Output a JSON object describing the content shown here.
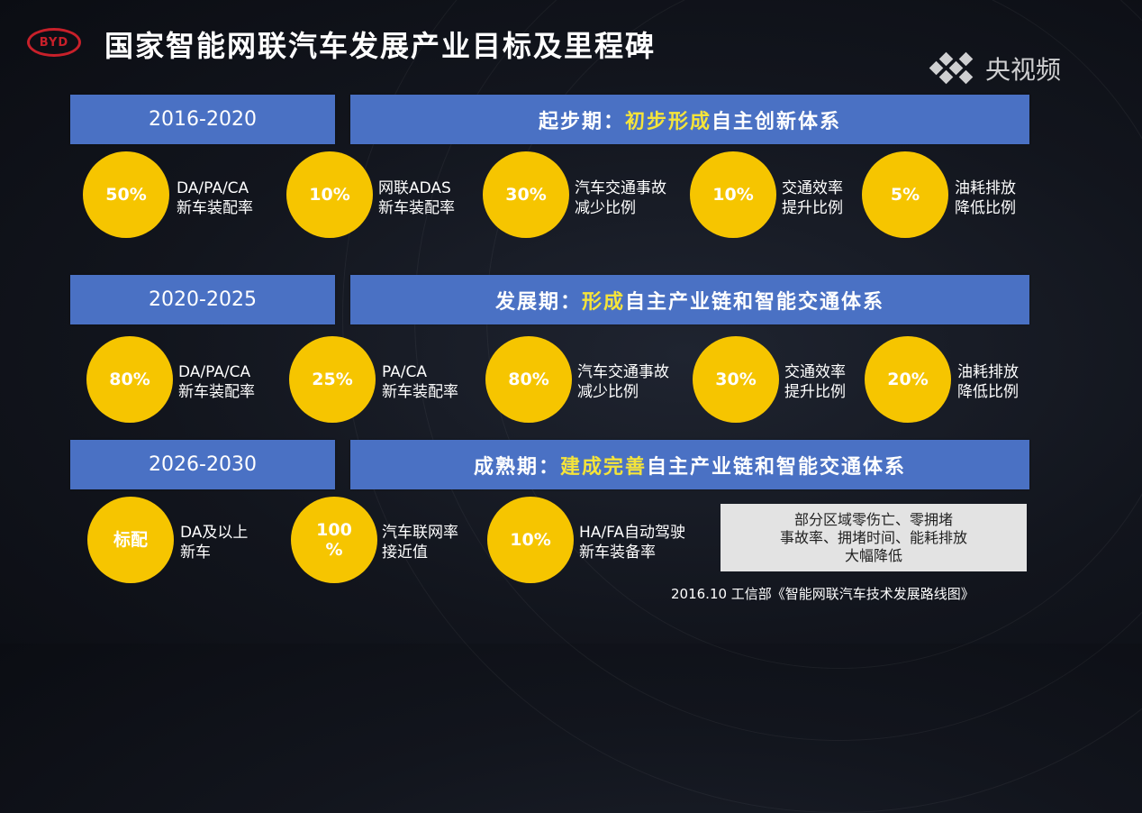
{
  "logo": "BYD",
  "title": "国家智能网联汽车发展产业目标及里程碑",
  "watermark": "央视频",
  "colors": {
    "bar": "#4a71c4",
    "circle": "#f6c500",
    "highlight": "#f5e43a",
    "logo": "#c8202a"
  },
  "stages": [
    {
      "years": "2016-2020",
      "phase_prefix": "起步期：",
      "phase_highlight": "初步形成",
      "phase_suffix": "自主创新体系",
      "metrics": [
        {
          "value": "50%",
          "line1": "DA/PA/CA",
          "line2": "新车装配率"
        },
        {
          "value": "10%",
          "line1": "网联ADAS",
          "line2": "新车装配率"
        },
        {
          "value": "30%",
          "line1": "汽车交通事故",
          "line2": "减少比例"
        },
        {
          "value": "10%",
          "line1": "交通效率",
          "line2": "提升比例"
        },
        {
          "value": "5%",
          "line1": "油耗排放",
          "line2": "降低比例"
        }
      ]
    },
    {
      "years": "2020-2025",
      "phase_prefix": "发展期：",
      "phase_highlight": "形成",
      "phase_suffix": "自主产业链和智能交通体系",
      "metrics": [
        {
          "value": "80%",
          "line1": "DA/PA/CA",
          "line2": "新车装配率"
        },
        {
          "value": "25%",
          "line1": "PA/CA",
          "line2": "新车装配率"
        },
        {
          "value": "80%",
          "line1": "汽车交通事故",
          "line2": "减少比例"
        },
        {
          "value": "30%",
          "line1": "交通效率",
          "line2": "提升比例"
        },
        {
          "value": "20%",
          "line1": "油耗排放",
          "line2": "降低比例"
        }
      ]
    },
    {
      "years": "2026-2030",
      "phase_prefix": "成熟期：",
      "phase_highlight": "建成完善",
      "phase_suffix": "自主产业链和智能交通体系",
      "metrics": [
        {
          "value": "标配",
          "line1": "DA及以上",
          "line2": "新车"
        },
        {
          "value": "100\n%",
          "line1": "汽车联网率",
          "line2": "接近值"
        },
        {
          "value": "10%",
          "line1": "HA/FA自动驾驶",
          "line2": "新车装备率"
        }
      ]
    }
  ],
  "note": {
    "line1": "部分区域零伤亡、零拥堵",
    "line2": "事故率、拥堵时间、能耗排放",
    "line3": "大幅降低"
  },
  "source": "2016.10 工信部《智能网联汽车技术发展路线图》"
}
